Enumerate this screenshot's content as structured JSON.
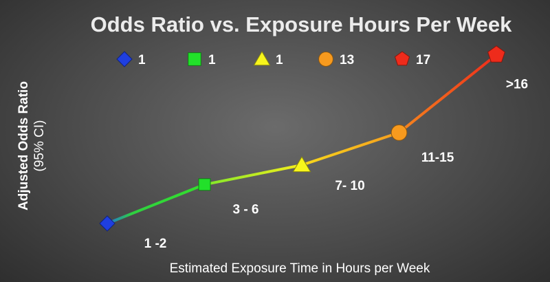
{
  "chart_data": {
    "type": "line",
    "title": "Odds Ratio vs. Exposure  Hours Per Week",
    "xlabel": "Estimated Exposure Time in Hours per Week",
    "ylabel_line1": "Adjusted Odds Ratio",
    "ylabel_line2": "(95% CI)",
    "categories": [
      "1 -2",
      "3 - 6",
      "7- 10",
      "11-15",
      ">16"
    ],
    "values": [
      1,
      2.2,
      2.8,
      3.8,
      6.2
    ],
    "ylim": [
      0,
      7
    ],
    "legend_placement": "top",
    "legend": [
      {
        "label": "1",
        "marker": "diamond",
        "color": "#1f3fe0"
      },
      {
        "label": "1",
        "marker": "square",
        "color": "#22e02a"
      },
      {
        "label": "1",
        "marker": "triangle",
        "color": "#f7f51c"
      },
      {
        "label": "13",
        "marker": "circle",
        "color": "#f79a1e"
      },
      {
        "label": "17",
        "marker": "pentagon",
        "color": "#ee2b1b"
      }
    ],
    "segment_colors": [
      "#3fd43a",
      "#e7f22a",
      "#f5ab1c",
      "#f0501e"
    ]
  }
}
